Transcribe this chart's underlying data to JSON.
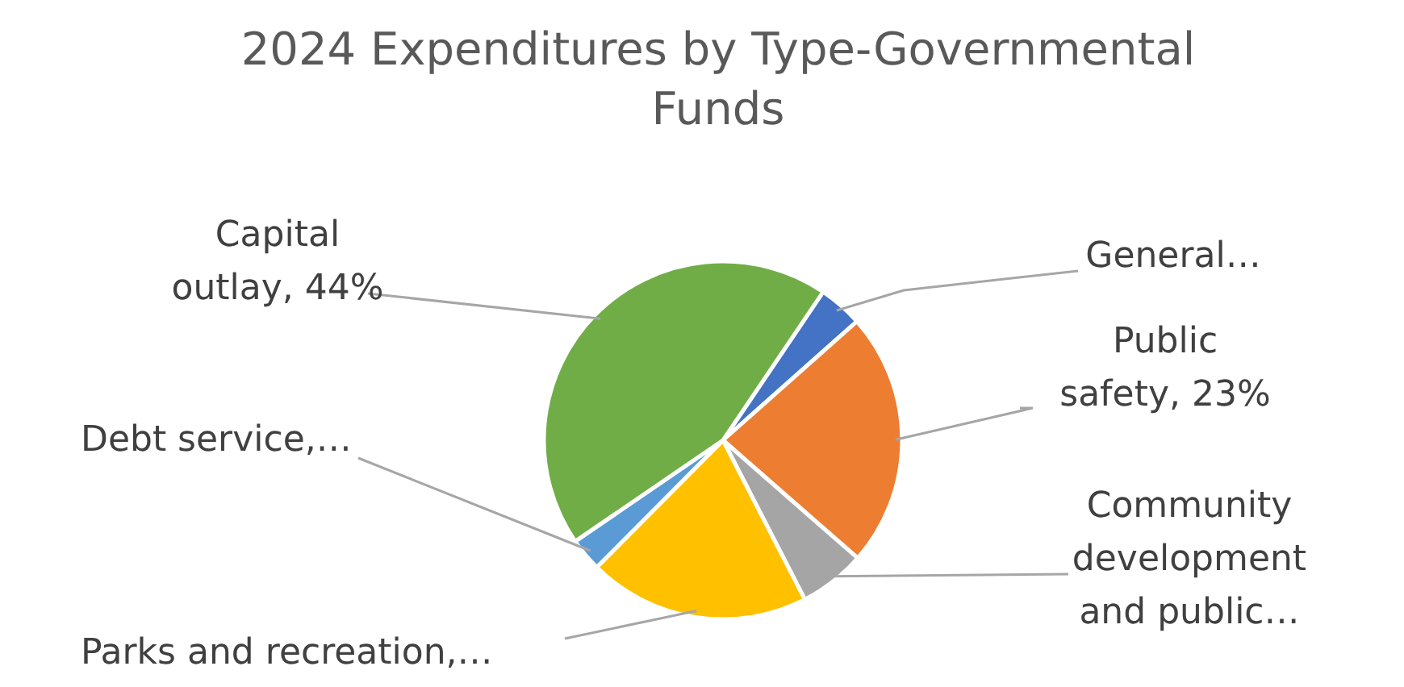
{
  "chart_data": {
    "type": "pie",
    "title": "2024 Expenditures by Type-Governmental Funds",
    "categories": [
      "General…",
      "Public safety",
      "Community development and public…",
      "Parks and recreation,…",
      "Debt service,…",
      "Capital outlay"
    ],
    "values": [
      4,
      23,
      6,
      20,
      3,
      44
    ],
    "value_labels": [
      null,
      "23%",
      null,
      null,
      null,
      "44%"
    ],
    "colors": [
      "#4472c4",
      "#ed7d31",
      "#a5a5a5",
      "#ffc000",
      "#5b9bd5",
      "#70ad47"
    ]
  }
}
